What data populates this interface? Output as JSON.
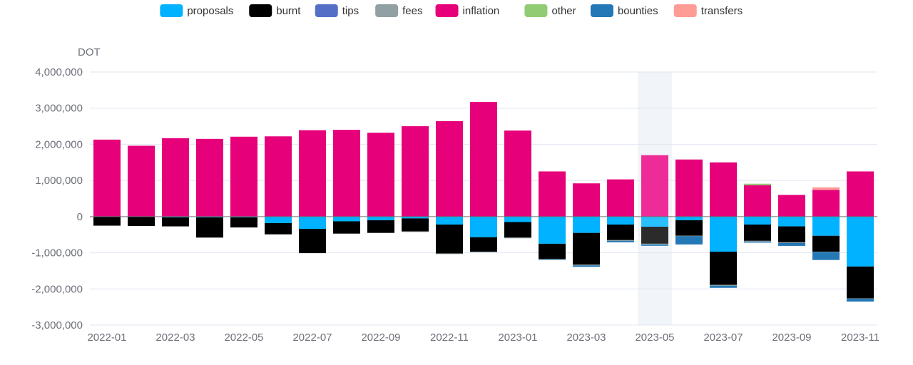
{
  "chart_data": {
    "type": "bar",
    "stacked": true,
    "ylabel": "DOT",
    "ylim": [
      -3000000,
      4000000
    ],
    "yticks": [
      4000000,
      3000000,
      2000000,
      1000000,
      0,
      -1000000,
      -2000000,
      -3000000
    ],
    "ytick_labels": [
      "4,000,000",
      "3,000,000",
      "2,000,000",
      "1,000,000",
      "0",
      "-1,000,000",
      "-2,000,000",
      "-3,000,000"
    ],
    "grid": true,
    "legend_position": "top-center",
    "highlighted_category": "2023-05",
    "categories": [
      "2022-01",
      "2022-02",
      "2022-03",
      "2022-04",
      "2022-05",
      "2022-06",
      "2022-07",
      "2022-08",
      "2022-09",
      "2022-10",
      "2022-11",
      "2022-12",
      "2023-01",
      "2023-02",
      "2023-03",
      "2023-04",
      "2023-05",
      "2023-06",
      "2023-07",
      "2023-08",
      "2023-09",
      "2023-10",
      "2023-11"
    ],
    "x_tick_labels": [
      "2022-01",
      "2022-03",
      "2022-05",
      "2022-07",
      "2022-09",
      "2022-11",
      "2023-01",
      "2023-03",
      "2023-05",
      "2023-07",
      "2023-09",
      "2023-11"
    ],
    "series": [
      {
        "name": "proposals",
        "color": "#00b2ff",
        "values": [
          0,
          0,
          -20000,
          -20000,
          -20000,
          -180000,
          -340000,
          -130000,
          -100000,
          -50000,
          -220000,
          -570000,
          -150000,
          -750000,
          -450000,
          -220000,
          -280000,
          -100000,
          -970000,
          -220000,
          -270000,
          -530000,
          -1380000
        ]
      },
      {
        "name": "burnt",
        "color": "#000000",
        "values": [
          -250000,
          -260000,
          -250000,
          -560000,
          -280000,
          -310000,
          -670000,
          -340000,
          -350000,
          -360000,
          -800000,
          -400000,
          -430000,
          -420000,
          -880000,
          -430000,
          -470000,
          -430000,
          -920000,
          -450000,
          -440000,
          -440000,
          -880000
        ]
      },
      {
        "name": "tips",
        "color": "#5470c6",
        "values": [
          0,
          0,
          0,
          0,
          0,
          0,
          0,
          0,
          0,
          0,
          0,
          0,
          0,
          0,
          0,
          0,
          0,
          0,
          0,
          0,
          0,
          0,
          0
        ]
      },
      {
        "name": "fees",
        "color": "#91a0a3",
        "values": [
          0,
          0,
          0,
          0,
          0,
          0,
          0,
          0,
          0,
          -10000,
          -10000,
          -10000,
          -20000,
          -20000,
          -20000,
          -20000,
          -20000,
          -10000,
          -20000,
          -20000,
          -20000,
          -10000,
          -10000
        ]
      },
      {
        "name": "inflation",
        "color": "#e6007a",
        "values": [
          2130000,
          1960000,
          2170000,
          2150000,
          2210000,
          2220000,
          2390000,
          2400000,
          2320000,
          2500000,
          2640000,
          3170000,
          2380000,
          1250000,
          920000,
          1030000,
          1700000,
          1580000,
          1500000,
          870000,
          600000,
          740000,
          1250000
        ]
      },
      {
        "name": "other",
        "color": "#91cc75",
        "values": [
          0,
          0,
          0,
          0,
          0,
          0,
          0,
          0,
          0,
          0,
          0,
          0,
          0,
          0,
          0,
          0,
          0,
          0,
          0,
          40000,
          0,
          0,
          0
        ]
      },
      {
        "name": "bounties",
        "color": "#2478b5",
        "values": [
          0,
          0,
          0,
          0,
          0,
          0,
          0,
          0,
          0,
          0,
          0,
          0,
          0,
          -10000,
          -40000,
          -40000,
          -40000,
          -230000,
          -60000,
          -30000,
          -80000,
          -220000,
          -80000
        ]
      },
      {
        "name": "transfers",
        "color": "#ff9c96",
        "values": [
          0,
          0,
          0,
          0,
          0,
          0,
          0,
          0,
          0,
          0,
          0,
          0,
          0,
          0,
          0,
          0,
          0,
          0,
          0,
          0,
          0,
          70000,
          0
        ]
      }
    ]
  }
}
